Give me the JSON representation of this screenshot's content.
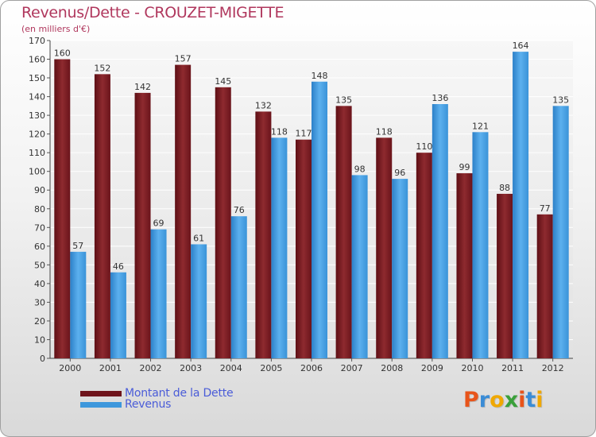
{
  "header": {
    "title": "Revenus/Dette - CROUZET-MIGETTE",
    "subtitle": "(en milliers d'€)"
  },
  "colors": {
    "debt": "#7a1a22",
    "revenue": "#3d97dc",
    "title": "#b0375d",
    "legend_text": "#4a5cd8"
  },
  "legend": {
    "debt_label": "Montant de la Dette",
    "revenue_label": "Revenus"
  },
  "logo": {
    "letters": [
      "P",
      "r",
      "o",
      "x",
      "i",
      "t",
      "i"
    ],
    "colors": [
      "#e8541a",
      "#3a8cd6",
      "#f0a800",
      "#3aa03a",
      "#e8541a",
      "#3a8cd6",
      "#f0a800"
    ]
  },
  "chart_data": {
    "type": "bar",
    "title": "Revenus/Dette - CROUZET-MIGETTE",
    "subtitle": "(en milliers d'€)",
    "categories": [
      "2000",
      "2001",
      "2002",
      "2003",
      "2004",
      "2005",
      "2006",
      "2007",
      "2008",
      "2009",
      "2010",
      "2011",
      "2012"
    ],
    "series": [
      {
        "name": "Montant de la Dette",
        "values": [
          160,
          152,
          142,
          157,
          145,
          132,
          117,
          135,
          118,
          110,
          99,
          88,
          77
        ]
      },
      {
        "name": "Revenus",
        "values": [
          57,
          46,
          69,
          61,
          76,
          118,
          148,
          98,
          96,
          136,
          121,
          164,
          135
        ]
      }
    ],
    "ylim": [
      0,
      170
    ],
    "ytick_step": 10,
    "grid": true,
    "legend_position": "bottom-left"
  }
}
